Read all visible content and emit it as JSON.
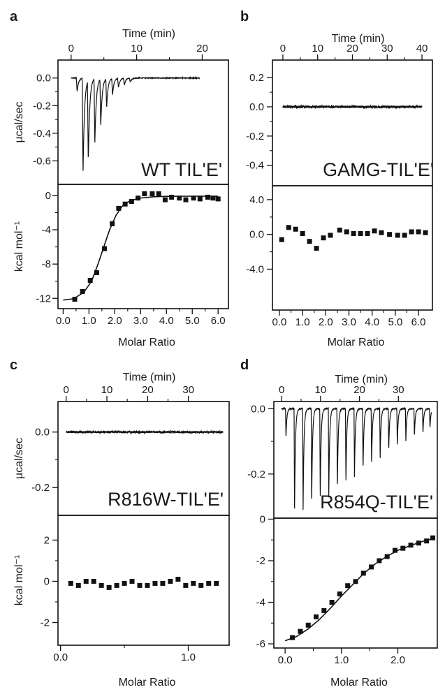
{
  "chart_data": [
    {
      "panel": "a",
      "type": "line",
      "title": "WT TIL'E'",
      "top": {
        "xlabel": "Time (min)",
        "ylabel": "µcal/sec",
        "xlim": [
          -2,
          24
        ],
        "ylim": [
          -0.77,
          0.13
        ],
        "xticks": [
          0,
          10,
          20
        ],
        "xtick_labels": [
          "0",
          "10",
          "20"
        ],
        "yticks": [
          0.0,
          -0.2,
          -0.4,
          -0.6
        ],
        "ytick_labels": [
          "0.0",
          "-0.2",
          "-0.4",
          "-0.6"
        ],
        "trace": {
          "start": 0.0,
          "end": 19.6,
          "injection_times": [
            0.8,
            1.7,
            2.5,
            3.5,
            4.4,
            5.3,
            6.2,
            7.1,
            8.0,
            8.9
          ],
          "peak_values": [
            -0.1,
            -0.7,
            -0.6,
            -0.48,
            -0.35,
            -0.21,
            -0.12,
            -0.07,
            -0.05,
            -0.03
          ],
          "noise": 0.003
        }
      },
      "bottom": {
        "xlabel": "Molar Ratio",
        "ylabel": "kcal mol⁻¹",
        "xlim": [
          -0.2,
          6.4
        ],
        "ylim": [
          -13.2,
          1.3
        ],
        "xticks": [
          0,
          1,
          2,
          3,
          4,
          5,
          6
        ],
        "xtick_labels": [
          "0.0",
          "1.0",
          "2.0",
          "3.0",
          "4.0",
          "5.0",
          "6.0"
        ],
        "yticks": [
          0,
          -4,
          -8,
          -12
        ],
        "ytick_labels": [
          "0",
          "-4",
          "-8",
          "-12"
        ],
        "points": [
          [
            0.45,
            -12.1
          ],
          [
            0.75,
            -11.2
          ],
          [
            1.05,
            -9.9
          ],
          [
            1.3,
            -9.0
          ],
          [
            1.6,
            -6.2
          ],
          [
            1.9,
            -3.3
          ],
          [
            2.15,
            -1.5
          ],
          [
            2.4,
            -1.0
          ],
          [
            2.65,
            -0.7
          ],
          [
            2.9,
            -0.3
          ],
          [
            3.15,
            0.2
          ],
          [
            3.45,
            0.2
          ],
          [
            3.7,
            0.2
          ],
          [
            3.95,
            -0.5
          ],
          [
            4.2,
            -0.2
          ],
          [
            4.5,
            -0.3
          ],
          [
            4.75,
            -0.5
          ],
          [
            5.05,
            -0.3
          ],
          [
            5.3,
            -0.4
          ],
          [
            5.6,
            -0.2
          ],
          [
            5.8,
            -0.3
          ],
          [
            6.0,
            -0.4
          ]
        ],
        "fit": [
          [
            0.0,
            -12.2
          ],
          [
            0.4,
            -12.05
          ],
          [
            0.8,
            -11.3
          ],
          [
            1.1,
            -10.0
          ],
          [
            1.35,
            -8.0
          ],
          [
            1.55,
            -6.2
          ],
          [
            1.8,
            -4.0
          ],
          [
            2.05,
            -2.3
          ],
          [
            2.3,
            -1.2
          ],
          [
            2.6,
            -0.6
          ],
          [
            3.0,
            -0.3
          ],
          [
            3.5,
            -0.15
          ],
          [
            4.0,
            -0.1
          ],
          [
            5.0,
            -0.08
          ],
          [
            6.0,
            -0.08
          ]
        ]
      }
    },
    {
      "panel": "b",
      "type": "line",
      "title": "GAMG-TIL'E'",
      "top": {
        "xlabel": "Time (min)",
        "ylabel": "",
        "xlim": [
          -3,
          43
        ],
        "ylim": [
          -0.54,
          0.32
        ],
        "xticks": [
          0,
          10,
          20,
          30,
          40
        ],
        "xtick_labels": [
          "0",
          "10",
          "20",
          "30",
          "40"
        ],
        "yticks": [
          0.2,
          0.0,
          -0.2,
          -0.4
        ],
        "ytick_labels": [
          "0.2",
          "0.0",
          "-0.2",
          "-0.4"
        ],
        "trace": {
          "start": 0.0,
          "end": 40.0,
          "injection_times": [],
          "peak_values": [],
          "noise": 0.008
        }
      },
      "bottom": {
        "xlabel": "Molar Ratio",
        "ylabel": "",
        "xlim": [
          -0.3,
          6.6
        ],
        "ylim": [
          -8.7,
          5.6
        ],
        "xticks": [
          0,
          1,
          2,
          3,
          4,
          5,
          6
        ],
        "xtick_labels": [
          "0.0",
          "1.0",
          "2.0",
          "3.0",
          "4.0",
          "5.0",
          "6.0"
        ],
        "yticks": [
          4,
          0,
          -4
        ],
        "ytick_labels": [
          "4.0",
          "0.0",
          "-4.0"
        ],
        "points": [
          [
            0.1,
            -0.6
          ],
          [
            0.4,
            0.8
          ],
          [
            0.7,
            0.6
          ],
          [
            1.0,
            0.1
          ],
          [
            1.3,
            -0.8
          ],
          [
            1.6,
            -1.6
          ],
          [
            1.9,
            -0.4
          ],
          [
            2.2,
            -0.1
          ],
          [
            2.6,
            0.5
          ],
          [
            2.9,
            0.3
          ],
          [
            3.2,
            0.1
          ],
          [
            3.5,
            0.1
          ],
          [
            3.8,
            0.1
          ],
          [
            4.1,
            0.4
          ],
          [
            4.4,
            0.2
          ],
          [
            4.75,
            0.0
          ],
          [
            5.1,
            -0.1
          ],
          [
            5.4,
            -0.1
          ],
          [
            5.7,
            0.3
          ],
          [
            6.0,
            0.3
          ],
          [
            6.3,
            0.2
          ]
        ],
        "fit": []
      }
    },
    {
      "panel": "c",
      "type": "line",
      "title": "R816W-TIL'E'",
      "top": {
        "xlabel": "Time (min)",
        "ylabel": "µcal/sec",
        "xlim": [
          -2,
          40
        ],
        "ylim": [
          -0.3,
          0.11
        ],
        "xticks": [
          0,
          10,
          20,
          30
        ],
        "xtick_labels": [
          "0",
          "10",
          "20",
          "30"
        ],
        "yticks": [
          0.0,
          -0.2
        ],
        "ytick_labels": [
          "0.0",
          "-0.2"
        ],
        "trace": {
          "start": 0.0,
          "end": 38.5,
          "injection_times": [],
          "peak_values": [],
          "noise": 0.0035
        }
      },
      "bottom": {
        "xlabel": "Molar Ratio",
        "ylabel": "kcal mol⁻¹",
        "xlim": [
          -0.02,
          1.32
        ],
        "ylim": [
          -3.1,
          3.2
        ],
        "xticks": [
          0.0,
          1.0
        ],
        "xtick_labels": [
          "0.0",
          "1.0"
        ],
        "yticks": [
          2,
          0,
          -2
        ],
        "ytick_labels": [
          "2",
          "0",
          "-2"
        ],
        "points": [
          [
            0.08,
            -0.1
          ],
          [
            0.14,
            -0.2
          ],
          [
            0.2,
            0.0
          ],
          [
            0.26,
            0.0
          ],
          [
            0.32,
            -0.2
          ],
          [
            0.38,
            -0.3
          ],
          [
            0.44,
            -0.2
          ],
          [
            0.5,
            -0.1
          ],
          [
            0.56,
            0.0
          ],
          [
            0.62,
            -0.2
          ],
          [
            0.68,
            -0.2
          ],
          [
            0.74,
            -0.1
          ],
          [
            0.8,
            -0.1
          ],
          [
            0.86,
            0.0
          ],
          [
            0.92,
            0.1
          ],
          [
            0.98,
            -0.2
          ],
          [
            1.04,
            -0.1
          ],
          [
            1.1,
            -0.2
          ],
          [
            1.16,
            -0.1
          ],
          [
            1.22,
            -0.1
          ]
        ],
        "fit": []
      }
    },
    {
      "panel": "d",
      "type": "line",
      "title": "R854Q-TIL'E'",
      "top": {
        "xlabel": "Time (min)",
        "ylabel": "",
        "xlim": [
          -2,
          40
        ],
        "ylim": [
          -0.335,
          0.022
        ],
        "xticks": [
          0,
          10,
          20,
          30
        ],
        "xtick_labels": [
          "0",
          "10",
          "20",
          "30"
        ],
        "yticks": [
          0.0,
          -0.2
        ],
        "ytick_labels": [
          "0.0",
          "-0.2"
        ],
        "trace": {
          "start": 0.0,
          "end": 38.5,
          "injection_times": [
            1.0,
            3.2,
            5.4,
            7.6,
            9.8,
            12.0,
            14.2,
            16.4,
            18.6,
            20.8,
            23.0,
            25.2,
            27.4,
            29.6,
            31.8,
            34.0,
            36.2,
            38.0
          ],
          "peak_values": [
            -0.09,
            -0.32,
            -0.31,
            -0.3,
            -0.28,
            -0.27,
            -0.25,
            -0.23,
            -0.21,
            -0.19,
            -0.17,
            -0.15,
            -0.13,
            -0.115,
            -0.1,
            -0.085,
            -0.075,
            -0.06
          ],
          "noise": 0.0012
        }
      },
      "bottom": {
        "xlabel": "Molar Ratio",
        "ylabel": "",
        "xlim": [
          -0.2,
          2.7
        ],
        "ylim": [
          -6.2,
          0.05
        ],
        "xticks": [
          0.0,
          1.0,
          2.0
        ],
        "xtick_labels": [
          "0.0",
          "1.0",
          "2.0"
        ],
        "yticks": [
          0,
          -2,
          -4,
          -6
        ],
        "ytick_labels": [
          "0",
          "-2",
          "-4",
          "-6"
        ],
        "points": [
          [
            0.13,
            -5.7
          ],
          [
            0.27,
            -5.4
          ],
          [
            0.41,
            -5.1
          ],
          [
            0.55,
            -4.7
          ],
          [
            0.69,
            -4.4
          ],
          [
            0.83,
            -4.0
          ],
          [
            0.97,
            -3.6
          ],
          [
            1.11,
            -3.2
          ],
          [
            1.25,
            -3.0
          ],
          [
            1.39,
            -2.6
          ],
          [
            1.53,
            -2.3
          ],
          [
            1.67,
            -2.0
          ],
          [
            1.81,
            -1.8
          ],
          [
            1.95,
            -1.5
          ],
          [
            2.09,
            -1.4
          ],
          [
            2.23,
            -1.25
          ],
          [
            2.37,
            -1.15
          ],
          [
            2.51,
            -1.05
          ],
          [
            2.62,
            -0.9
          ]
        ],
        "fit": [
          [
            0.0,
            -5.85
          ],
          [
            0.2,
            -5.65
          ],
          [
            0.4,
            -5.3
          ],
          [
            0.6,
            -4.85
          ],
          [
            0.8,
            -4.3
          ],
          [
            1.0,
            -3.7
          ],
          [
            1.2,
            -3.15
          ],
          [
            1.4,
            -2.6
          ],
          [
            1.6,
            -2.15
          ],
          [
            1.8,
            -1.8
          ],
          [
            2.0,
            -1.5
          ],
          [
            2.2,
            -1.3
          ],
          [
            2.4,
            -1.1
          ],
          [
            2.6,
            -0.95
          ]
        ]
      }
    }
  ]
}
